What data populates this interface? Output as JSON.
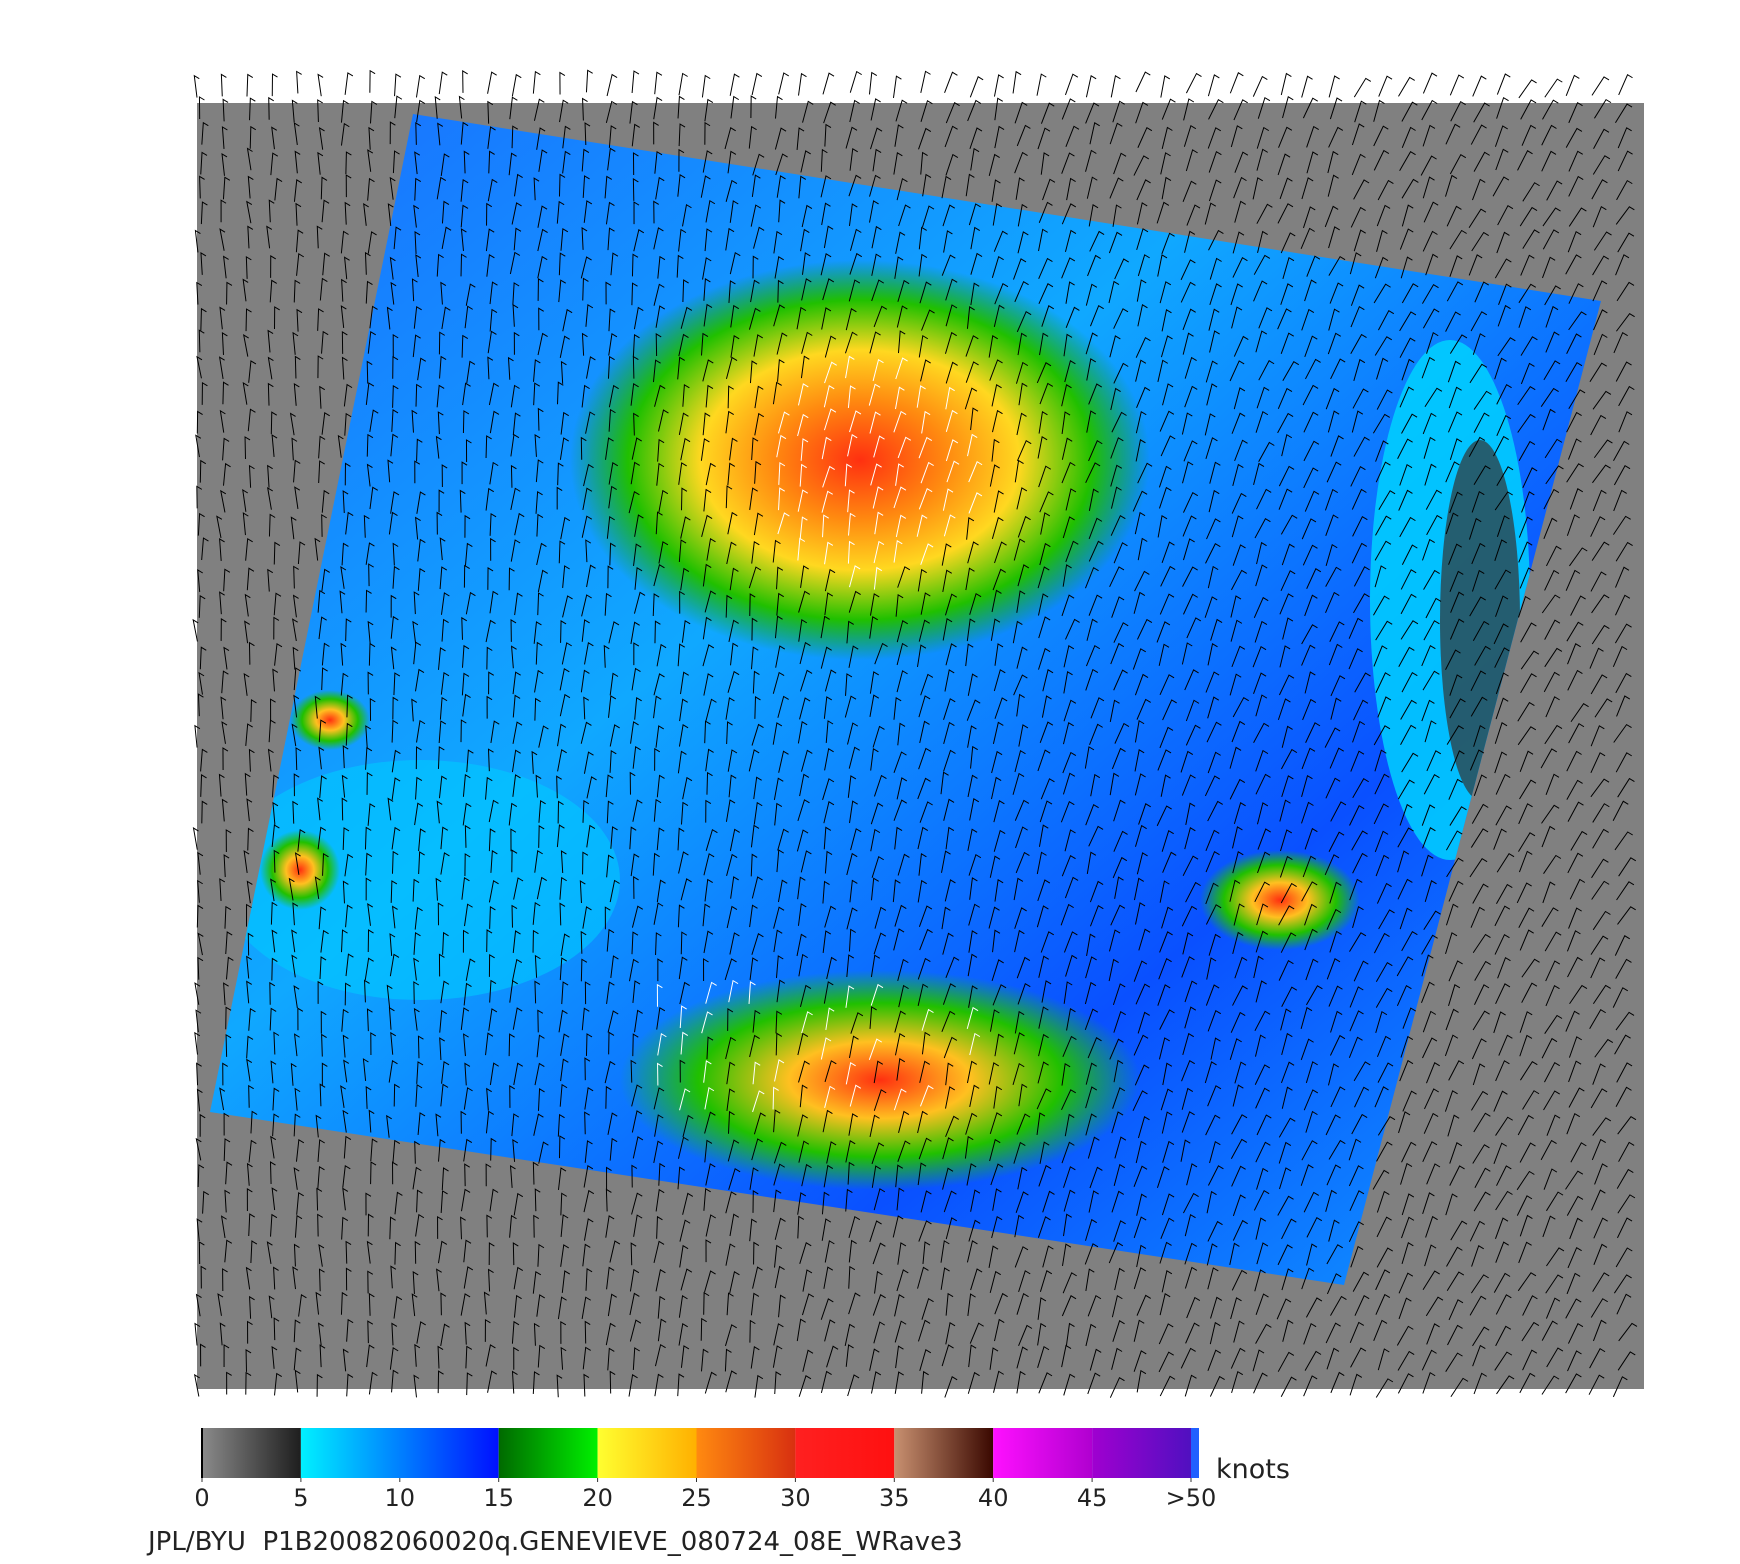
{
  "colorbar": {
    "lim": [
      0,
      50
    ],
    "ticks": [
      0,
      5,
      10,
      15,
      20,
      25,
      30,
      35,
      40,
      45,
      {
        "value": 50,
        "label": ">50"
      }
    ],
    "unit": "knots",
    "segments": [
      {
        "from": 0,
        "to": 5,
        "colors": [
          "#8a8a8a",
          "#1e1e1e"
        ]
      },
      {
        "from": 5,
        "to": 15,
        "colors": [
          "#00f0ff",
          "#0010ff"
        ]
      },
      {
        "from": 15,
        "to": 20,
        "colors": [
          "#006a00",
          "#00f000"
        ]
      },
      {
        "from": 20,
        "to": 25,
        "colors": [
          "#ffff30",
          "#ffb000"
        ]
      },
      {
        "from": 25,
        "to": 30,
        "colors": [
          "#ff8a10",
          "#d83010"
        ]
      },
      {
        "from": 30,
        "to": 35,
        "colors": [
          "#ff2020",
          "#ff1010"
        ]
      },
      {
        "from": 35,
        "to": 40,
        "colors": [
          "#c89070",
          "#3a0800"
        ]
      },
      {
        "from": 40,
        "to": 45,
        "colors": [
          "#ff10ff",
          "#b000d0"
        ]
      },
      {
        "from": 45,
        "to": 50,
        "colors": [
          "#a000d0",
          "#5010c0"
        ]
      }
    ]
  },
  "footer": "JPL/BYU  P1B20082060020q.GENEVIEVE_080724_08E_WRave3"
}
